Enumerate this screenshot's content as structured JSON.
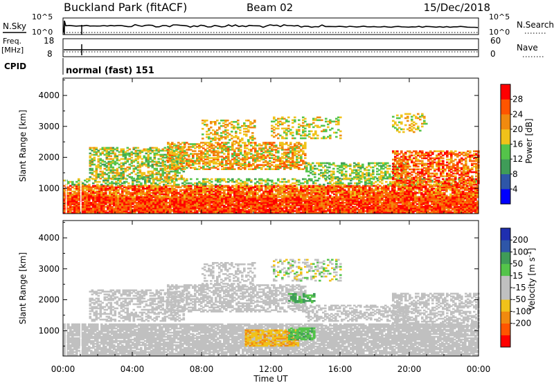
{
  "header": {
    "title": "Buckland Park (fitACF)",
    "beam": "Beam 02",
    "date": "15/Dec/2018"
  },
  "status_panels": {
    "nsky_label": "N.Sky",
    "nsearch_label": "N.Search",
    "noise_left_ticks": [
      "10^5",
      "10^0"
    ],
    "noise_right_ticks": [
      "10^5",
      "10^0"
    ],
    "freq_label": "Freq.",
    "freq_unit": "[MHz]",
    "freq_ticks": [
      "18",
      "8"
    ],
    "nave_label": "Nave",
    "nave_ticks": [
      "60",
      "0"
    ],
    "cpid_label": "CPID",
    "cpid_value": "normal (fast) 151"
  },
  "colors": {
    "power": [
      "#0000ff",
      "#2e56a8",
      "#3f9c58",
      "#54c44a",
      "#f0c21a",
      "#f08a0f",
      "#ff5500",
      "#ff0000"
    ],
    "velocity": [
      "#ff0000",
      "#ff5500",
      "#f08a0f",
      "#f0c21a",
      "#c0c0c0",
      "#c0c0c0",
      "#54c44a",
      "#3f9c58",
      "#2e56a8",
      "#1f2fb0"
    ]
  },
  "chart_data": [
    {
      "type": "heatmap",
      "name": "power",
      "ylabel": "Slant Range [km]",
      "yticks": [
        1000,
        2000,
        3000,
        4000
      ],
      "ylim": [
        180,
        4560
      ],
      "colorbar_label": "Power [dB]",
      "colorbar_ticks": [
        "4",
        "8",
        "12",
        "16",
        "20",
        "24",
        "28"
      ],
      "colorbar_range": [
        0,
        32
      ],
      "regions": [
        {
          "x0": 0.0,
          "x1": 24.0,
          "y0": 200,
          "y1": 700,
          "v0": 22,
          "v1": 32,
          "density": 0.95
        },
        {
          "x0": 0.0,
          "x1": 24.0,
          "y0": 700,
          "y1": 1100,
          "v0": 18,
          "v1": 32,
          "density": 0.85
        },
        {
          "x0": 0.0,
          "x1": 24.0,
          "y0": 1100,
          "y1": 1300,
          "v0": 10,
          "v1": 20,
          "density": 0.45
        },
        {
          "x0": 1.5,
          "x1": 7.0,
          "y0": 1300,
          "y1": 2300,
          "v0": 10,
          "v1": 22,
          "density": 0.55
        },
        {
          "x0": 6.0,
          "x1": 14.0,
          "y0": 1600,
          "y1": 2500,
          "v0": 14,
          "v1": 26,
          "density": 0.6
        },
        {
          "x0": 8.0,
          "x1": 11.0,
          "y0": 2500,
          "y1": 3200,
          "v0": 14,
          "v1": 24,
          "density": 0.35
        },
        {
          "x0": 12.0,
          "x1": 16.0,
          "y0": 2600,
          "y1": 3300,
          "v0": 12,
          "v1": 22,
          "density": 0.3
        },
        {
          "x0": 14.0,
          "x1": 20.0,
          "y0": 1300,
          "y1": 1800,
          "v0": 10,
          "v1": 20,
          "density": 0.5
        },
        {
          "x0": 19.0,
          "x1": 24.0,
          "y0": 1100,
          "y1": 2200,
          "v0": 18,
          "v1": 32,
          "density": 0.6
        },
        {
          "x0": 19.0,
          "x1": 21.0,
          "y0": 2800,
          "y1": 3400,
          "v0": 14,
          "v1": 22,
          "density": 0.3
        }
      ]
    },
    {
      "type": "heatmap",
      "name": "velocity",
      "ylabel": "Slant Range [km]",
      "yticks": [
        1000,
        2000,
        3000,
        4000
      ],
      "ylim": [
        180,
        4560
      ],
      "colorbar_label": "Velocity [m s^-1]",
      "colorbar_ticks": [
        "200",
        "100",
        "50",
        "15",
        "-15",
        "-50",
        "-100",
        "-200"
      ],
      "colorbar_range": [
        -250,
        250
      ],
      "regions": [
        {
          "x0": 0.0,
          "x1": 24.0,
          "y0": 200,
          "y1": 1200,
          "v0": -15,
          "v1": 15,
          "density": 0.85
        },
        {
          "x0": 10.5,
          "x1": 13.5,
          "y0": 500,
          "y1": 1000,
          "v0": -60,
          "v1": -30,
          "density": 0.7
        },
        {
          "x0": 13.0,
          "x1": 14.5,
          "y0": 700,
          "y1": 1100,
          "v0": 20,
          "v1": 60,
          "density": 0.7
        },
        {
          "x0": 1.5,
          "x1": 7.0,
          "y0": 1300,
          "y1": 2300,
          "v0": -15,
          "v1": 15,
          "density": 0.5
        },
        {
          "x0": 6.0,
          "x1": 14.0,
          "y0": 1600,
          "y1": 2500,
          "v0": -15,
          "v1": 15,
          "density": 0.6
        },
        {
          "x0": 13.0,
          "x1": 14.5,
          "y0": 1900,
          "y1": 2200,
          "v0": 30,
          "v1": 70,
          "density": 0.6
        },
        {
          "x0": 8.0,
          "x1": 11.0,
          "y0": 2500,
          "y1": 3200,
          "v0": -15,
          "v1": 15,
          "density": 0.35
        },
        {
          "x0": 12.0,
          "x1": 16.0,
          "y0": 2600,
          "y1": 3300,
          "v0": -30,
          "v1": 30,
          "density": 0.3
        },
        {
          "x0": 14.0,
          "x1": 20.0,
          "y0": 1300,
          "y1": 1800,
          "v0": -15,
          "v1": 15,
          "density": 0.5
        },
        {
          "x0": 19.0,
          "x1": 24.0,
          "y0": 1100,
          "y1": 2200,
          "v0": -15,
          "v1": 15,
          "density": 0.55
        }
      ]
    }
  ],
  "x_axis": {
    "label": "Time UT",
    "xlim": [
      0,
      24
    ],
    "tick_values": [
      0,
      4,
      8,
      12,
      16,
      20,
      24
    ],
    "tick_labels": [
      "00:00",
      "04:00",
      "08:00",
      "12:00",
      "16:00",
      "20:00",
      "00:00"
    ]
  }
}
